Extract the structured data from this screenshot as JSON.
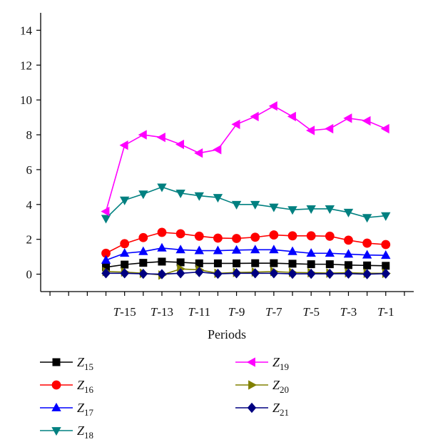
{
  "chart_data": {
    "type": "line",
    "title": "",
    "xlabel": "Periods",
    "ylabel": "",
    "ylim": [
      -1,
      15
    ],
    "yticks": [
      0,
      2,
      4,
      6,
      8,
      10,
      12,
      14
    ],
    "x": [
      16,
      15,
      14,
      13,
      12,
      11,
      10,
      9,
      8,
      7,
      6,
      5,
      4,
      3,
      2,
      1
    ],
    "xlim": [
      19.5,
      -0.5
    ],
    "xtick_values": [
      15,
      13,
      11,
      9,
      7,
      5,
      3,
      1
    ],
    "xtick_labels": [
      {
        "italic": "T",
        "rest": "-15"
      },
      {
        "italic": "T",
        "rest": "-13"
      },
      {
        "italic": "T",
        "rest": "-11"
      },
      {
        "italic": "T",
        "rest": "-9"
      },
      {
        "italic": "T",
        "rest": "-7"
      },
      {
        "italic": "T",
        "rest": "-5"
      },
      {
        "italic": "T",
        "rest": "-3"
      },
      {
        "italic": "T",
        "rest": "-1"
      }
    ],
    "legend_placement": "bottom",
    "series": [
      {
        "name": "Z15",
        "base": "Z",
        "sub": "15",
        "color": "#000000",
        "marker": "square",
        "values": [
          0.4,
          0.55,
          0.65,
          0.72,
          0.68,
          0.62,
          0.62,
          0.62,
          0.63,
          0.63,
          0.6,
          0.57,
          0.57,
          0.52,
          0.5,
          0.48
        ]
      },
      {
        "name": "Z16",
        "base": "Z",
        "sub": "16",
        "color": "#ff0000",
        "marker": "circle",
        "values": [
          1.2,
          1.75,
          2.1,
          2.4,
          2.32,
          2.18,
          2.07,
          2.05,
          2.12,
          2.25,
          2.2,
          2.2,
          2.18,
          1.95,
          1.78,
          1.7
        ]
      },
      {
        "name": "Z17",
        "base": "Z",
        "sub": "17",
        "color": "#0000ff",
        "marker": "triangle-up",
        "values": [
          0.8,
          1.2,
          1.3,
          1.5,
          1.4,
          1.35,
          1.35,
          1.38,
          1.4,
          1.4,
          1.3,
          1.2,
          1.2,
          1.15,
          1.1,
          1.08
        ]
      },
      {
        "name": "Z18",
        "base": "Z",
        "sub": "18",
        "color": "#008080",
        "marker": "triangle-down",
        "values": [
          3.2,
          4.25,
          4.6,
          5.0,
          4.65,
          4.5,
          4.4,
          4.0,
          4.0,
          3.85,
          3.7,
          3.75,
          3.75,
          3.55,
          3.25,
          3.35
        ]
      },
      {
        "name": "Z19",
        "base": "Z",
        "sub": "19",
        "color": "#ff00ff",
        "marker": "triangle-left",
        "values": [
          3.6,
          7.4,
          8.0,
          7.85,
          7.45,
          6.95,
          7.15,
          8.6,
          9.05,
          9.65,
          9.05,
          8.25,
          8.35,
          8.95,
          8.8,
          8.35
        ]
      },
      {
        "name": "Z20",
        "base": "Z",
        "sub": "20",
        "color": "#808000",
        "marker": "triangle-right",
        "values": [
          0.15,
          0.12,
          0.05,
          -0.05,
          0.3,
          0.25,
          0.05,
          0.1,
          0.12,
          0.15,
          0.1,
          0.08,
          0.06,
          0.08,
          0.05,
          0.05
        ]
      },
      {
        "name": "Z21",
        "base": "Z",
        "sub": "21",
        "color": "#000080",
        "marker": "diamond",
        "values": [
          0.05,
          0.05,
          0.02,
          0.0,
          0.05,
          0.12,
          0.02,
          0.05,
          0.05,
          0.05,
          0.02,
          0.02,
          0.02,
          0.03,
          0.0,
          0.03
        ]
      }
    ]
  }
}
